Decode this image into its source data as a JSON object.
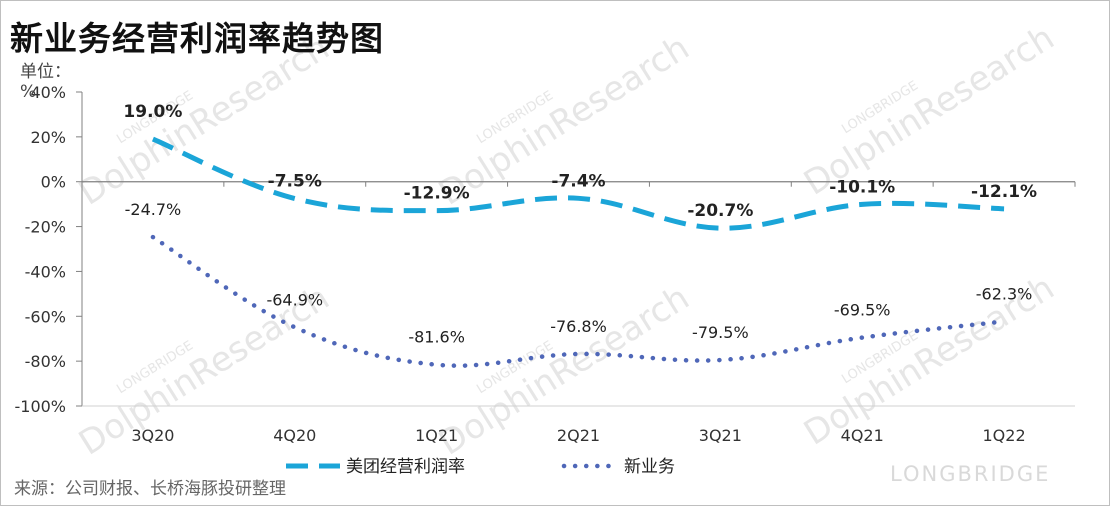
{
  "title": "新业务经营利润率趋势图",
  "unit": "单位：%",
  "source": "来源：公司财报、长桥海豚投研整理",
  "watermark": {
    "main": "DolphinResearch",
    "small": "LONGBRIDGE",
    "brand": "LONGBRIDGE"
  },
  "colors": {
    "meituan": "#1ba5d8",
    "new_business": "#4f67b8",
    "axis": "#808080"
  },
  "chart_data": {
    "type": "line",
    "title": "新业务经营利润率趋势图",
    "ylabel": "单位：%",
    "categories": [
      "3Q20",
      "4Q20",
      "1Q21",
      "2Q21",
      "3Q21",
      "4Q21",
      "1Q22"
    ],
    "ylim": [
      -100,
      40
    ],
    "yticks": [
      "40%",
      "20%",
      "0%",
      "-20%",
      "-40%",
      "-60%",
      "-80%",
      "-100%"
    ],
    "legend_position": "bottom",
    "series": [
      {
        "name": "美团经营利润率",
        "style": "dashed",
        "values": [
          19.0,
          -7.5,
          -12.9,
          -7.4,
          -20.7,
          -10.1,
          -12.1
        ],
        "labels": [
          "19.0%",
          "-7.5%",
          "-12.9%",
          "-7.4%",
          "-20.7%",
          "-10.1%",
          "-12.1%"
        ]
      },
      {
        "name": "新业务",
        "style": "dotted",
        "values": [
          -24.7,
          -64.9,
          -81.6,
          -76.8,
          -79.5,
          -69.5,
          -62.3
        ],
        "labels": [
          "-24.7%",
          "-64.9%",
          "-81.6%",
          "-76.8%",
          "-79.5%",
          "-69.5%",
          "-62.3%"
        ]
      }
    ]
  }
}
